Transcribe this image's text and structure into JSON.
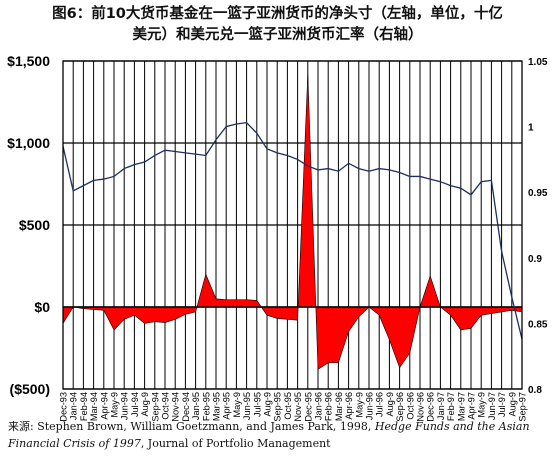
{
  "title_line1": "图6：前10大货币基金在一篮子亚洲货币的净头寸（左轴，单位，十亿",
  "title_line2": "美元）和美元兑一篮子亚洲货币汇率（右轴）",
  "source": {
    "prefix": "来源: Stephen Brown, William Goetzmann, and James Park, 1998, ",
    "italic": "Hedge Funds and the Asian Financial Crisis of 1997",
    "suffix": ", Journal of Portfolio Management"
  },
  "colors": {
    "area": "#ff0000",
    "line": "#1f2f5f",
    "grid": "#000000"
  },
  "chart_data": {
    "type": "area",
    "x": [
      "Dec-93",
      "Jan-94",
      "Feb-94",
      "Mar-94",
      "Apr-94",
      "May-94",
      "Jun-94",
      "Jul-94",
      "Aug-94",
      "Sep-94",
      "Oct-94",
      "Nov-94",
      "Dec-94",
      "Jan-95",
      "Feb-95",
      "Mar-95",
      "Apr-95",
      "May-95",
      "Jun-95",
      "Jul-95",
      "Aug-95",
      "Sep-95",
      "Oct-95",
      "Nov-95",
      "Dec-95",
      "Jan-96",
      "Feb-96",
      "Mar-96",
      "Apr-96",
      "May-96",
      "Jun-96",
      "Jul-96",
      "Aug-96",
      "Sep-96",
      "Oct-96",
      "Nov-96",
      "Dec-96",
      "Jan-97",
      "Feb-97",
      "Mar-97",
      "Apr-97",
      "May-97",
      "Jun-97",
      "Jul-97",
      "Aug-97",
      "Sep-97"
    ],
    "x_tick_labels": [
      "Dec-93",
      "Jan-94",
      "Feb-94",
      "Mar-94",
      "Apr-94",
      "May-9",
      "Jun-94",
      "Jul-94",
      "Aug-9",
      "Sep-94",
      "Oct-94",
      "Nov-94",
      "Dec-94",
      "Jan-95",
      "Feb-95",
      "Mar-95",
      "Apr-95",
      "May-9",
      "Jun-95",
      "Jul-95",
      "Aug-9",
      "Sep-95",
      "Oct-95",
      "Nov-95",
      "Dec-95",
      "Jan-96",
      "Feb-96",
      "Mar-96",
      "Apr-96",
      "May-9",
      "Jun-96",
      "Jul-96",
      "Aug-9",
      "Sep-96",
      "Oct-96",
      "Nov-96",
      "Dec-96",
      "Jan-97",
      "Feb-97",
      "Mar-97",
      "Apr-97",
      "May-9",
      "Jun-97",
      "Jul-97",
      "Aug-9",
      "Sep-97"
    ],
    "series": [
      {
        "axis": "left",
        "kind": "area",
        "values": [
          -100,
          0,
          -10,
          -15,
          -20,
          -140,
          -75,
          -50,
          -100,
          -90,
          -95,
          -75,
          -45,
          -30,
          200,
          50,
          45,
          45,
          45,
          40,
          -50,
          -70,
          -75,
          -80,
          1420,
          -380,
          -340,
          -340,
          -150,
          -60,
          0,
          -50,
          -200,
          -370,
          -280,
          0,
          190,
          0,
          -50,
          -140,
          -130,
          -50,
          -40,
          -30,
          -20,
          -30
        ],
        "color": "#ff0000"
      },
      {
        "axis": "right",
        "kind": "line",
        "values": [
          0.985,
          0.951,
          0.955,
          0.959,
          0.96,
          0.962,
          0.968,
          0.971,
          0.973,
          0.978,
          0.982,
          0.981,
          0.98,
          0.979,
          0.978,
          0.99,
          1.0,
          1.002,
          1.003,
          0.995,
          0.983,
          0.98,
          0.978,
          0.975,
          0.97,
          0.967,
          0.968,
          0.966,
          0.972,
          0.968,
          0.966,
          0.968,
          0.967,
          0.965,
          0.962,
          0.962,
          0.96,
          0.958,
          0.955,
          0.953,
          0.948,
          0.958,
          0.959,
          0.905,
          0.87,
          0.838
        ],
        "color": "#1f2f5f"
      }
    ],
    "y_left": {
      "ylim": [
        -500,
        1500
      ],
      "ticks": [
        -500,
        0,
        500,
        1000,
        1500
      ],
      "tick_labels": [
        "($500)",
        "$0",
        "$500",
        "$1,000",
        "$1,500"
      ]
    },
    "y_right": {
      "ylim": [
        0.8,
        1.05
      ],
      "ticks": [
        0.8,
        0.85,
        0.9,
        0.95,
        1.0,
        1.05
      ],
      "tick_labels": [
        "0.8",
        "0.85",
        "0.9",
        "0.95",
        "1",
        "1.05"
      ]
    },
    "grid": {
      "vertical": true,
      "horizontal": true
    }
  }
}
